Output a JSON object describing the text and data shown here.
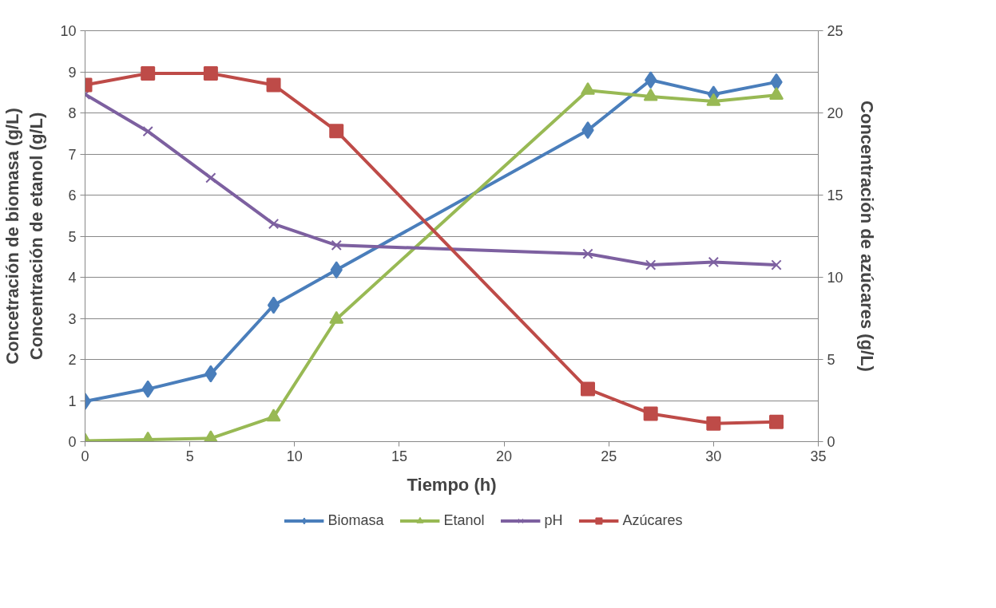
{
  "chart_data": {
    "type": "line",
    "xlabel": "Tiempo (h)",
    "ylabel": "Concetración de biomasa (g/L)\nConcentración de etanol (g/L)",
    "y2label": "Concentración de azúcares (g/L)",
    "x": [
      0,
      3,
      6,
      9,
      12,
      24,
      27,
      30,
      33
    ],
    "series": [
      {
        "name": "Biomasa",
        "color": "#4a7ebb",
        "marker": "diamond",
        "values": [
          0.98,
          1.28,
          1.65,
          3.32,
          4.18,
          7.58,
          8.8,
          8.45,
          8.75
        ]
      },
      {
        "name": "Etanol",
        "color": "#98b954",
        "marker": "triangle",
        "values": [
          0.02,
          0.05,
          0.08,
          0.6,
          2.98,
          8.55,
          8.4,
          8.28,
          8.43
        ]
      },
      {
        "name": "pH",
        "color": "#7d60a0",
        "marker": "cross",
        "values": [
          8.45,
          7.55,
          6.42,
          5.3,
          4.78,
          4.57,
          4.3,
          4.37,
          4.3
        ]
      },
      {
        "name": "Azúcares",
        "color": "#be4b48",
        "marker": "square",
        "axis": "y2",
        "values": [
          21.7,
          22.4,
          22.4,
          21.7,
          18.9,
          3.2,
          1.7,
          1.1,
          1.2
        ]
      }
    ],
    "xlim": [
      0,
      35
    ],
    "xticks": [
      0,
      5,
      10,
      15,
      20,
      25,
      30,
      35
    ],
    "ylim": [
      0,
      10
    ],
    "yticks": [
      0,
      1,
      2,
      3,
      4,
      5,
      6,
      7,
      8,
      9,
      10
    ],
    "y2lim": [
      0,
      25
    ],
    "y2ticks": [
      0,
      5,
      10,
      15,
      20,
      25
    ],
    "grid": "y",
    "legend": "bottom",
    "line_style": "solid"
  }
}
